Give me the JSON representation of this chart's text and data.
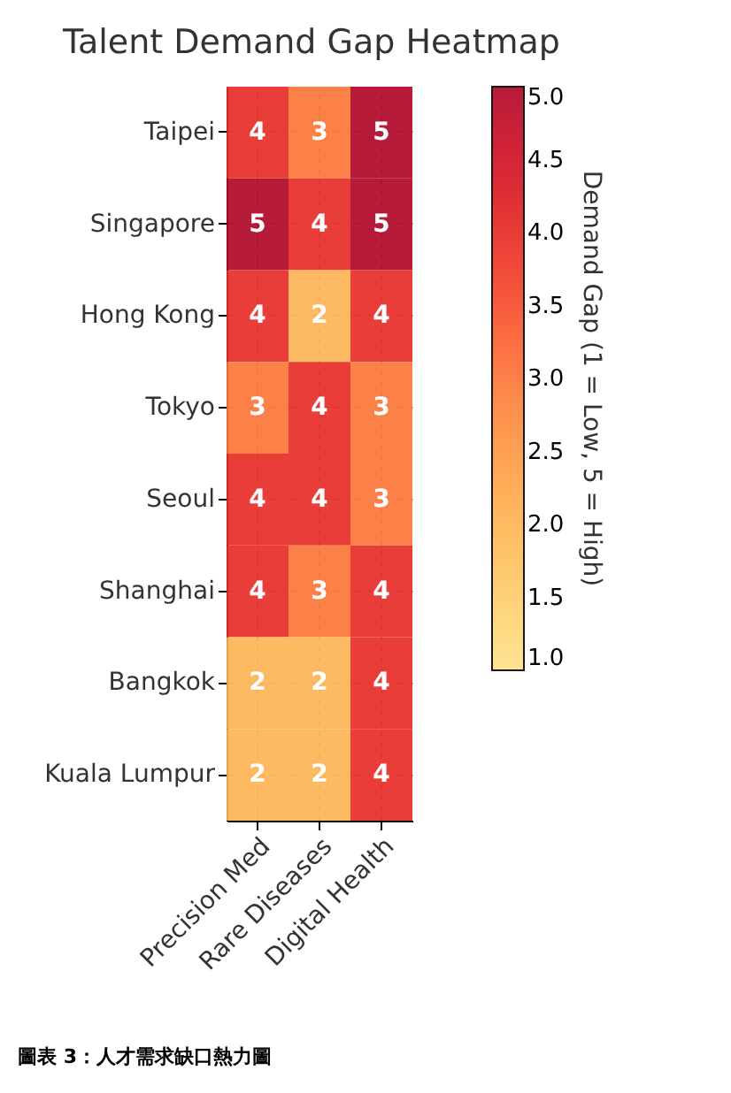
{
  "chart_data": {
    "type": "heatmap",
    "title": "Talent Demand Gap Heatmap",
    "categories": [
      "Precision Med",
      "Rare Diseases",
      "Digital Health"
    ],
    "y_categories": [
      "Taipei",
      "Singapore",
      "Hong Kong",
      "Tokyo",
      "Seoul",
      "Shanghai",
      "Bangkok",
      "Kuala Lumpur"
    ],
    "cells": [
      [
        4,
        3,
        5
      ],
      [
        5,
        4,
        5
      ],
      [
        4,
        2,
        4
      ],
      [
        3,
        4,
        3
      ],
      [
        4,
        4,
        3
      ],
      [
        4,
        3,
        4
      ],
      [
        2,
        2,
        4
      ],
      [
        2,
        2,
        4
      ]
    ],
    "data_labels": true,
    "clabel": "Demand Gap (1 = Low, 5 = High)",
    "clim": [
      1,
      5
    ],
    "cticks": [
      {
        "value": 1,
        "label": "1.0"
      },
      {
        "value": 1.5,
        "label": "1.5"
      },
      {
        "value": 2,
        "label": "2.0"
      },
      {
        "value": 2.5,
        "label": "2.5"
      },
      {
        "value": 3,
        "label": "3.0"
      },
      {
        "value": 3.5,
        "label": "3.5"
      },
      {
        "value": 4,
        "label": "4.0"
      },
      {
        "value": 4.5,
        "label": "4.5"
      },
      {
        "value": 5,
        "label": "5.0"
      }
    ],
    "grid": true,
    "annotations": [
      "圖表 3：人才需求缺口熱力圖"
    ]
  }
}
